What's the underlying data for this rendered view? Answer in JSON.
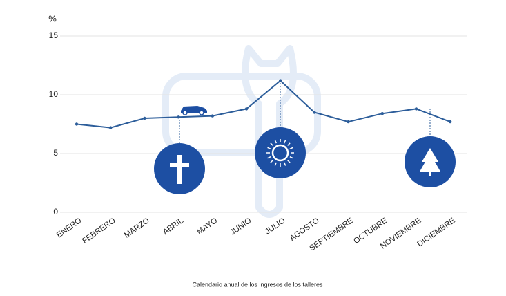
{
  "chart_data": {
    "type": "line",
    "caption": "Calendario anual de los ingresos de los talleres",
    "y_label": "%",
    "categories": [
      "ENERO",
      "FEBRERO",
      "MARZO",
      "ABRIL",
      "MAYO",
      "JUNIO",
      "JULIO",
      "AGOSTO",
      "SEPTIEMBRE",
      "OCTUBRE",
      "NOVIEMBRE",
      "DICIEMBRE"
    ],
    "values": [
      7.5,
      7.2,
      8.0,
      8.1,
      8.2,
      8.8,
      11.2,
      8.5,
      7.7,
      8.4,
      8.8,
      7.7
    ],
    "color": "#2c5d9a",
    "ylim": [
      0,
      15
    ],
    "yticks": [
      0,
      5,
      10,
      15
    ],
    "grid": true
  }
}
